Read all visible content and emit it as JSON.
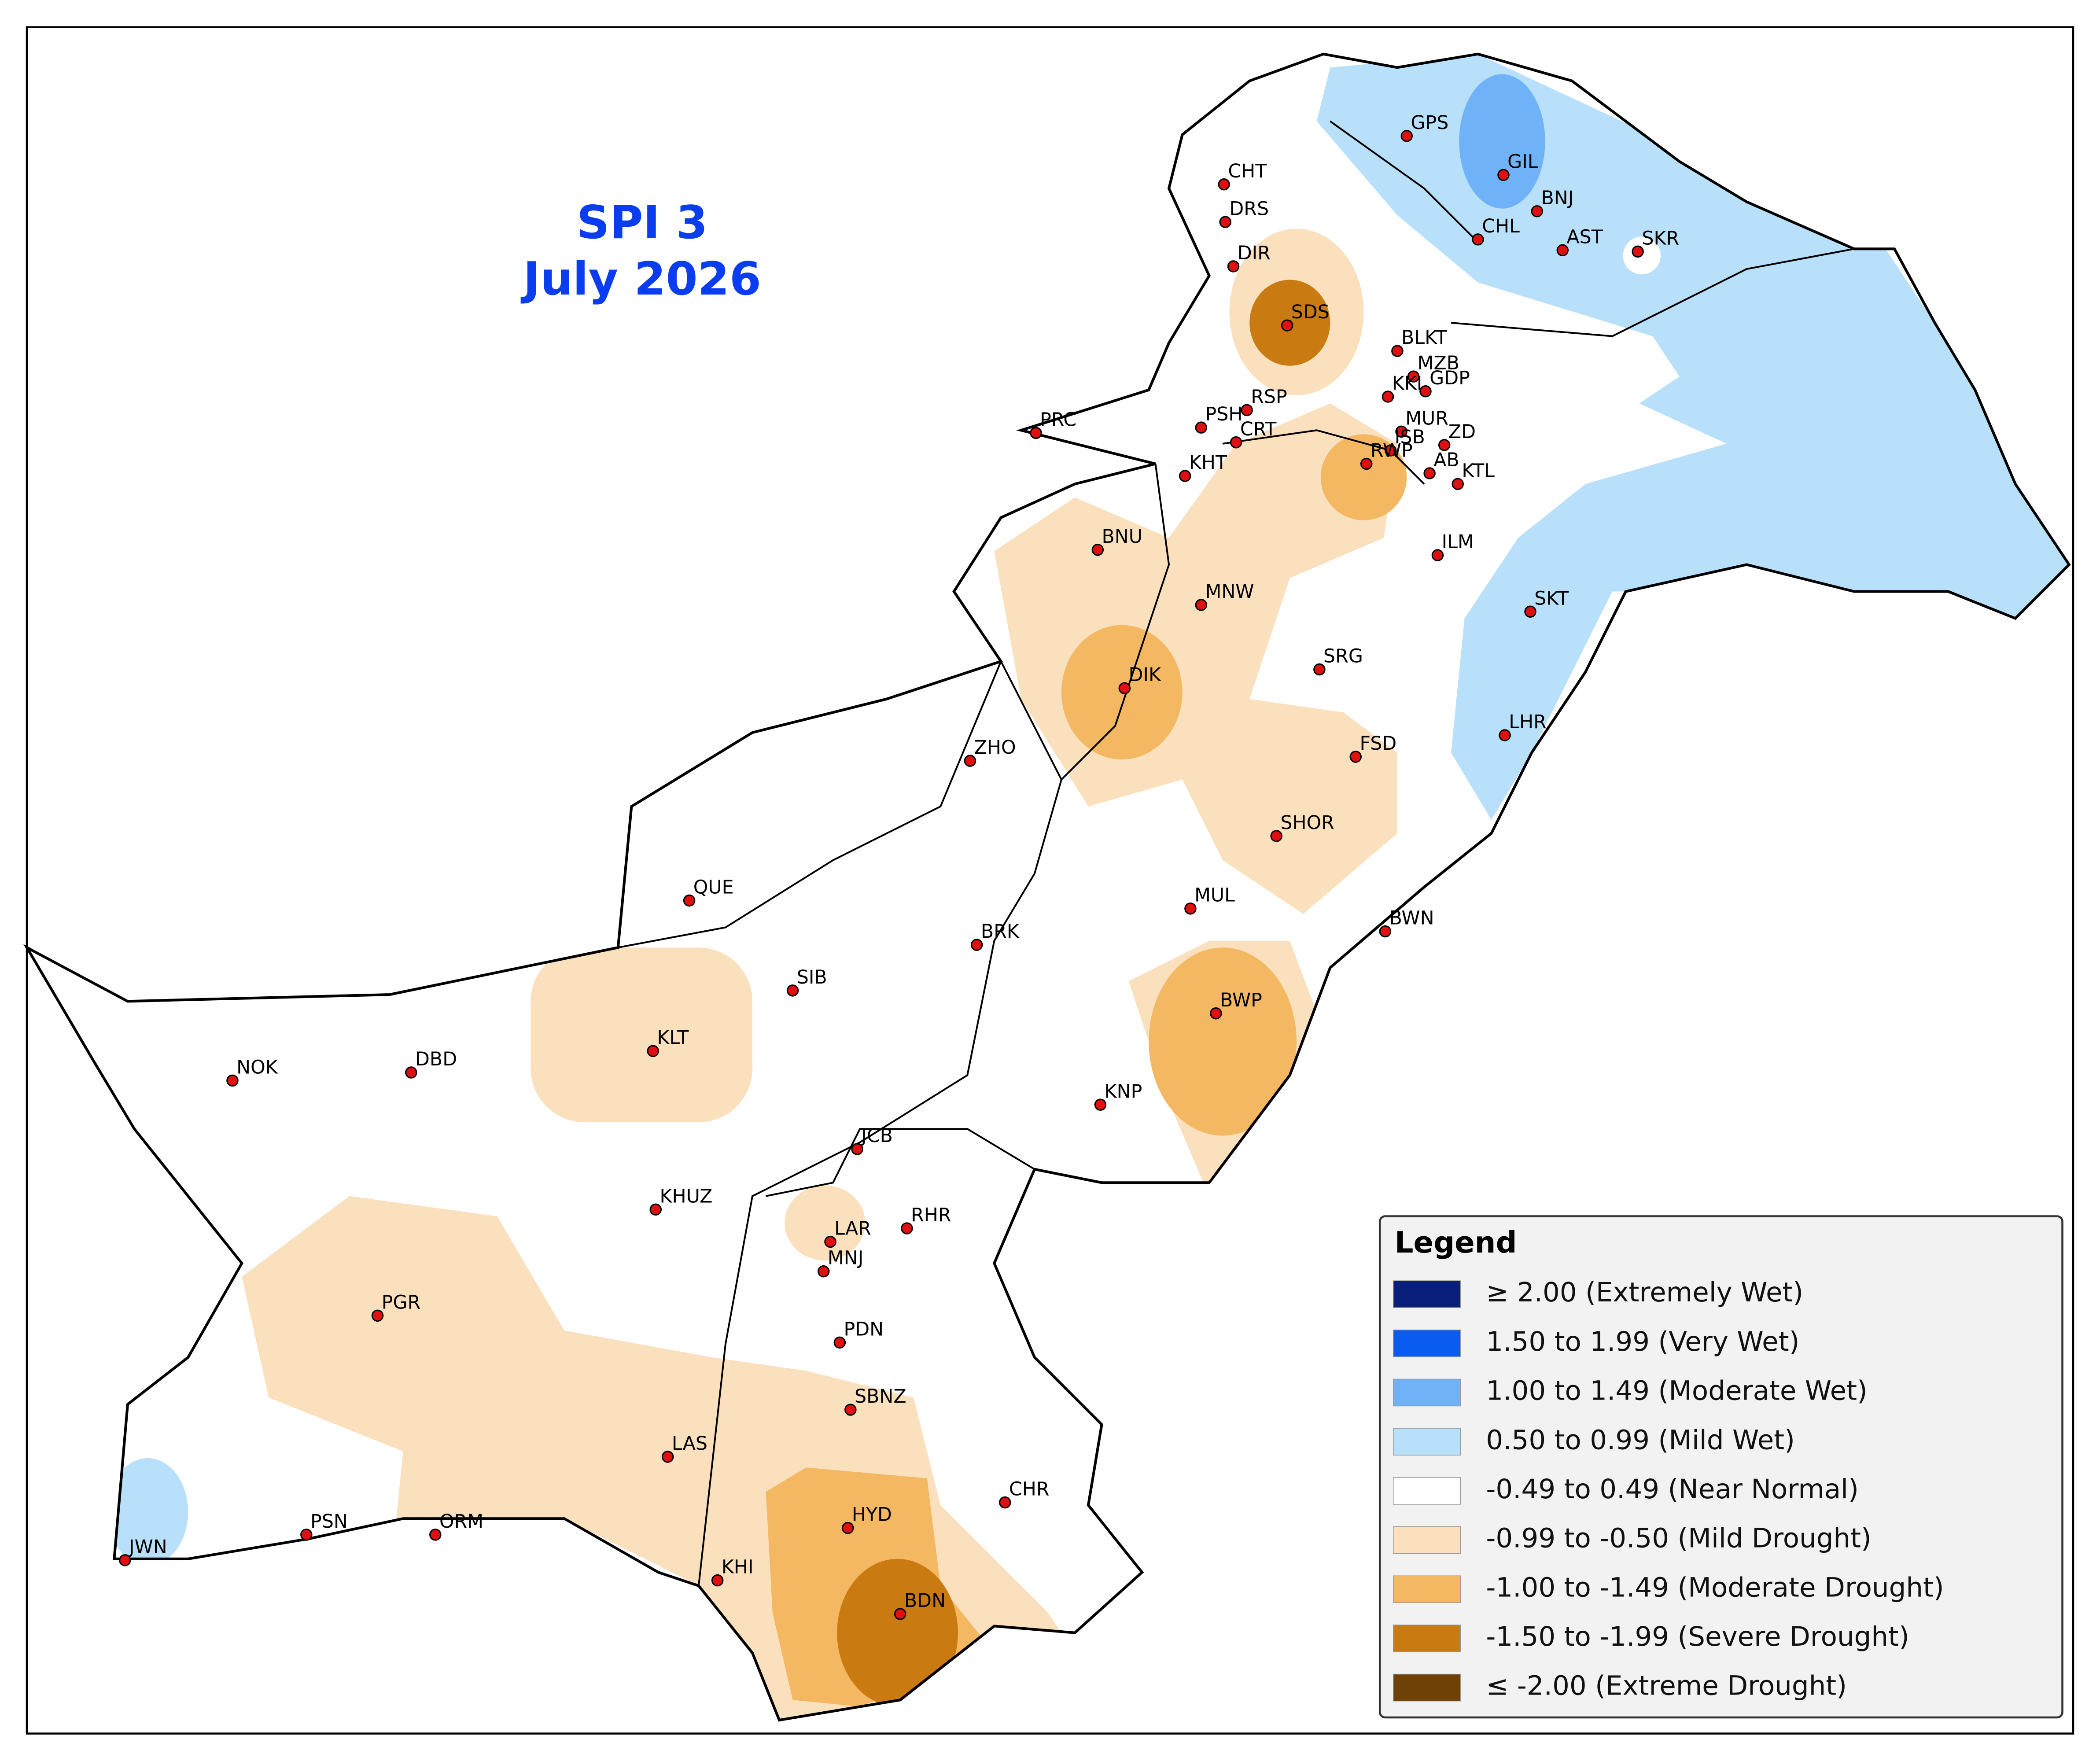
{
  "title": {
    "line1": "SPI 3",
    "line2": "July 2026"
  },
  "stations": [
    "GPS",
    "GIL",
    "BNJ",
    "CHL",
    "AST",
    "SKR",
    "CHT",
    "DRS",
    "DIR",
    "SDS",
    "BLKT",
    "MZB",
    "KKI",
    "GDP",
    "RSP",
    "MUR",
    "PSH",
    "PRC",
    "CRT",
    "ISB",
    "ZD",
    "RWP",
    "AB",
    "KTL",
    "KHT",
    "BNU",
    "ILM",
    "MNW",
    "SKT",
    "SRG",
    "DIK",
    "LHR",
    "FSD",
    "ZHO",
    "SHOR",
    "QUE",
    "MUL",
    "BWN",
    "BRK",
    "SIB",
    "BWP",
    "KLT",
    "NOK",
    "DBD",
    "KNP",
    "JCB",
    "KHUZ",
    "LAR",
    "RHR",
    "MNJ",
    "PGR",
    "PDN",
    "SBNZ",
    "LAS",
    "CHR",
    "HYD",
    "PSN",
    "ORM",
    "JWN",
    "KHI",
    "BDN"
  ],
  "legend": {
    "title": "Legend",
    "items": [
      {
        "label": "≥ 2.00 (Extremely Wet)",
        "color": "#0a1f7a"
      },
      {
        "label": "1.50 to 1.99 (Very Wet)",
        "color": "#0a5cf0"
      },
      {
        "label": "1.00 to 1.49 (Moderate Wet)",
        "color": "#6fb2f7"
      },
      {
        "label": "0.50 to 0.99 (Mild Wet)",
        "color": "#b9e0fb"
      },
      {
        "label": "-0.49 to 0.49 (Near Normal)",
        "color": "#ffffff"
      },
      {
        "label": "-0.99 to -0.50 (Mild Drought)",
        "color": "#fbe0bd"
      },
      {
        "label": "-1.00 to -1.49 (Moderate Drought)",
        "color": "#f4b862"
      },
      {
        "label": "-1.50 to -1.99 (Severe Drought)",
        "color": "#c97b12"
      },
      {
        "label": "≤ -2.00 (Extreme Drought)",
        "color": "#6e4206"
      }
    ]
  }
}
